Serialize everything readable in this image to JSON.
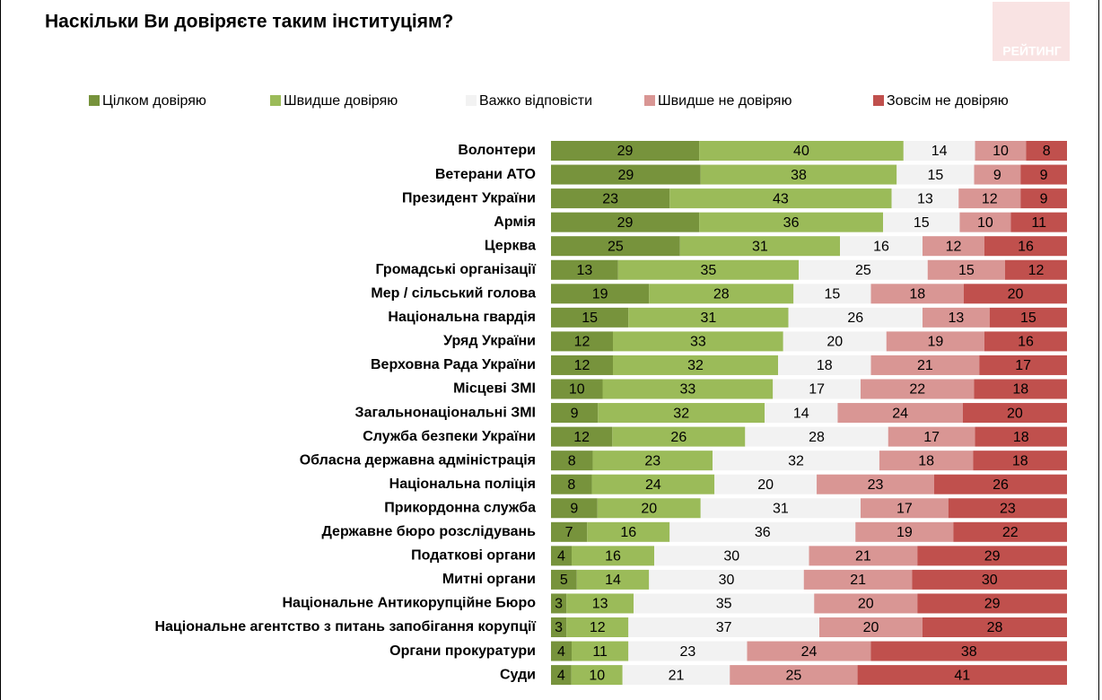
{
  "chart_data": {
    "type": "stacked-bar-horizontal",
    "title": "Наскільки Ви довіряєте таким інституціям?",
    "logo": "РЕЙТИНГ",
    "categories": [
      "Волонтери",
      "Ветерани АТО",
      "Президент України",
      "Армія",
      "Церква",
      "Громадські організації",
      "Мер / сільський голова",
      "Національна гвардія",
      "Уряд України",
      "Верховна Рада України",
      "Місцеві ЗМІ",
      "Загальнонаціональні ЗМІ",
      "Служба безпеки України",
      "Обласна державна адміністрація",
      "Національна поліція",
      "Прикордонна служба",
      "Державне бюро розслідувань",
      "Податкові органи",
      "Митні органи",
      "Національне Антикорупційне Бюро",
      "Національне агентство з питань запобігання корупції",
      "Органи прокуратури",
      "Суди"
    ],
    "series": [
      {
        "name": "Цілком довіряю",
        "color": "#77933c",
        "values": [
          29,
          29,
          23,
          29,
          25,
          13,
          19,
          15,
          12,
          12,
          10,
          9,
          12,
          8,
          8,
          9,
          7,
          4,
          5,
          3,
          3,
          4,
          4
        ]
      },
      {
        "name": "Швидше довіряю",
        "color": "#9bbb59",
        "values": [
          40,
          38,
          43,
          36,
          31,
          35,
          28,
          31,
          33,
          32,
          33,
          32,
          26,
          23,
          24,
          20,
          16,
          16,
          14,
          13,
          12,
          11,
          10
        ]
      },
      {
        "name": "Важко відповісти",
        "color": "#f2f2f2",
        "values": [
          14,
          15,
          13,
          15,
          16,
          25,
          15,
          26,
          20,
          18,
          17,
          14,
          28,
          32,
          20,
          31,
          36,
          30,
          30,
          35,
          37,
          23,
          21
        ]
      },
      {
        "name": "Швидше не довіряю",
        "color": "#d99694",
        "values": [
          10,
          9,
          12,
          10,
          12,
          15,
          18,
          13,
          19,
          21,
          22,
          24,
          17,
          18,
          23,
          17,
          19,
          21,
          21,
          20,
          20,
          24,
          25
        ]
      },
      {
        "name": "Зовсім не довіряю",
        "color": "#c0504d",
        "values": [
          8,
          9,
          9,
          11,
          16,
          12,
          20,
          15,
          16,
          17,
          18,
          20,
          18,
          18,
          26,
          23,
          22,
          29,
          30,
          29,
          28,
          38,
          41
        ]
      }
    ]
  }
}
